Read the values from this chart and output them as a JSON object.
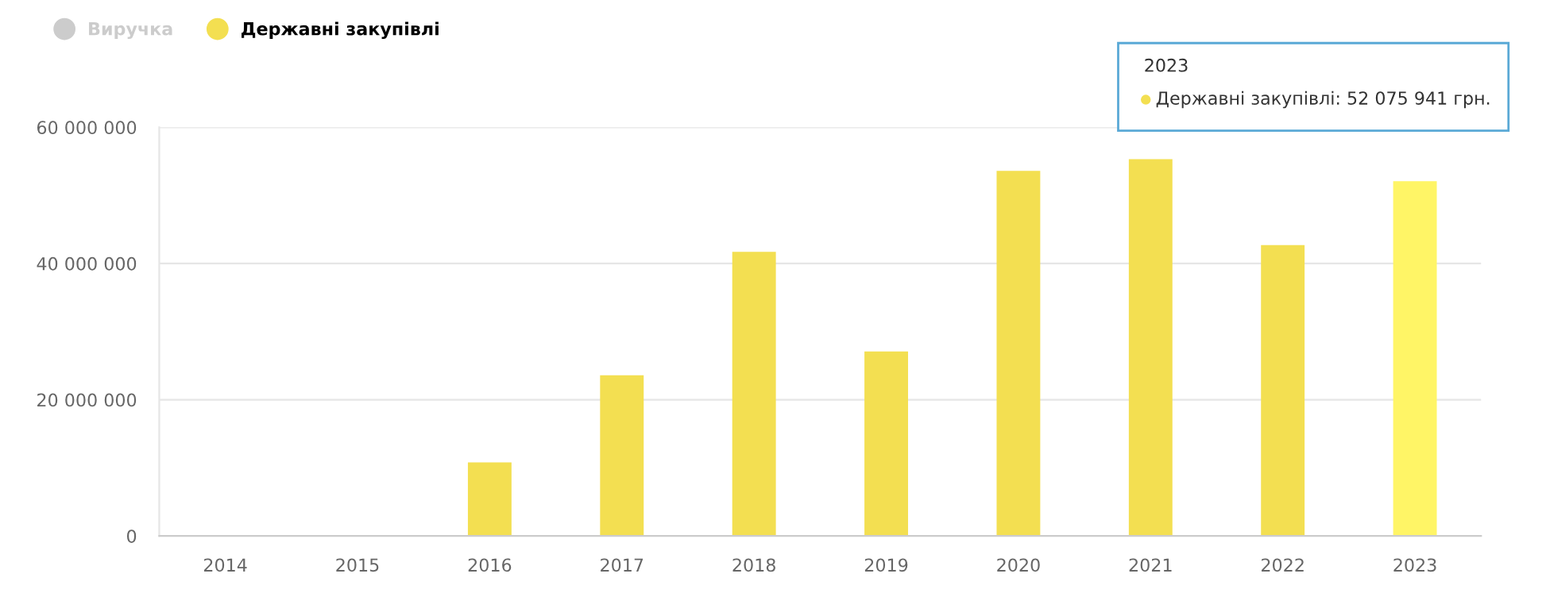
{
  "chart_data": {
    "type": "bar",
    "categories": [
      "2014",
      "2015",
      "2016",
      "2017",
      "2018",
      "2019",
      "2020",
      "2021",
      "2022",
      "2023"
    ],
    "series": [
      {
        "name": "Виручка",
        "color": "#cccccc",
        "values": [
          null,
          null,
          null,
          null,
          null,
          null,
          null,
          null,
          null,
          null
        ]
      },
      {
        "name": "Державні закупівлі",
        "color": "#f3df51",
        "colors": [
          "#f3df51",
          "#f3df51",
          "#f3df51",
          "#f3df51",
          "#f3df51",
          "#f3df51",
          "#f3df51",
          "#f3df51",
          "#f3df51",
          "#fff566"
        ],
        "values": [
          null,
          null,
          10800000,
          23600000,
          41700000,
          27100000,
          53600000,
          55300000,
          42700000,
          52075941
        ]
      }
    ],
    "ylim": [
      0,
      60000000
    ],
    "yticks": [
      {
        "value": 0,
        "label": "0"
      },
      {
        "value": 20000000,
        "label": "20 000 000"
      },
      {
        "value": 40000000,
        "label": "40 000 000"
      },
      {
        "value": 60000000,
        "label": "60 000 000"
      }
    ],
    "grid": "y",
    "legend": "top left",
    "annotations": [
      "2023",
      "Державні закупівлі: 52 075 941 грн."
    ]
  }
}
